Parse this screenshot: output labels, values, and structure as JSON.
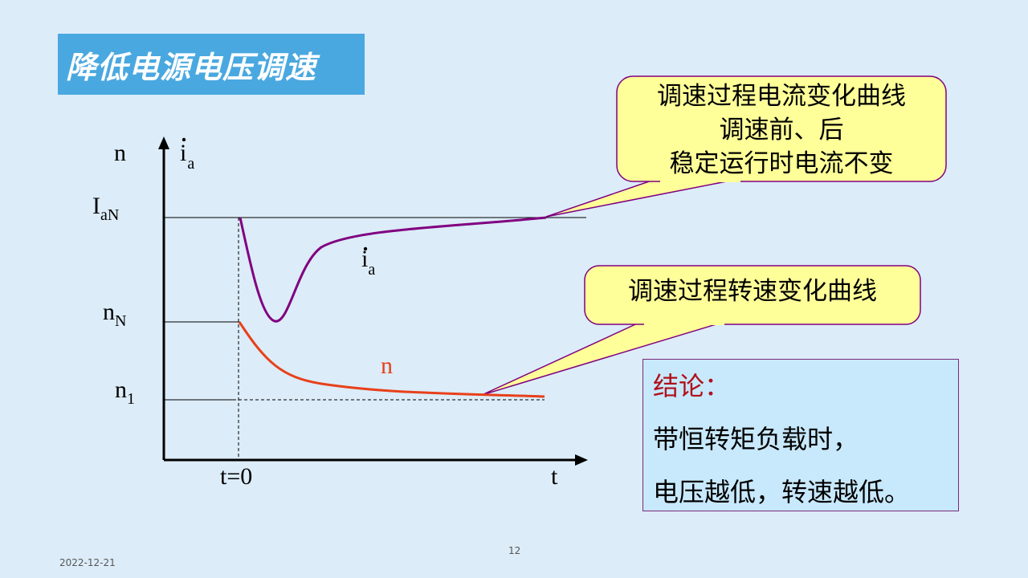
{
  "title": "降低电源电压调速",
  "axes": {
    "y_speed": "n",
    "y_current": "i",
    "y_current_sub": "a",
    "x": "t",
    "x_origin": "t=0"
  },
  "levels": {
    "IaN": "I",
    "IaN_sub": "aN",
    "nN": "n",
    "nN_sub": "N",
    "n1": "n",
    "n1_sub": "1"
  },
  "curves": {
    "current_label": "i",
    "current_label_sub": "a",
    "speed_label": "n",
    "current_color": "#800080",
    "speed_color": "#e8401a"
  },
  "callout_current": {
    "lines": [
      "调速过程电流变化曲线",
      "调速前、后",
      "稳定运行时电流不变"
    ]
  },
  "callout_speed": {
    "text": "调速过程转速变化曲线"
  },
  "conclusion": {
    "heading": "结论：",
    "line1": "带恒转矩负载时，",
    "line2": "电压越低，转速越低。"
  },
  "footer": {
    "date": "2022-12-21",
    "page": "12"
  }
}
